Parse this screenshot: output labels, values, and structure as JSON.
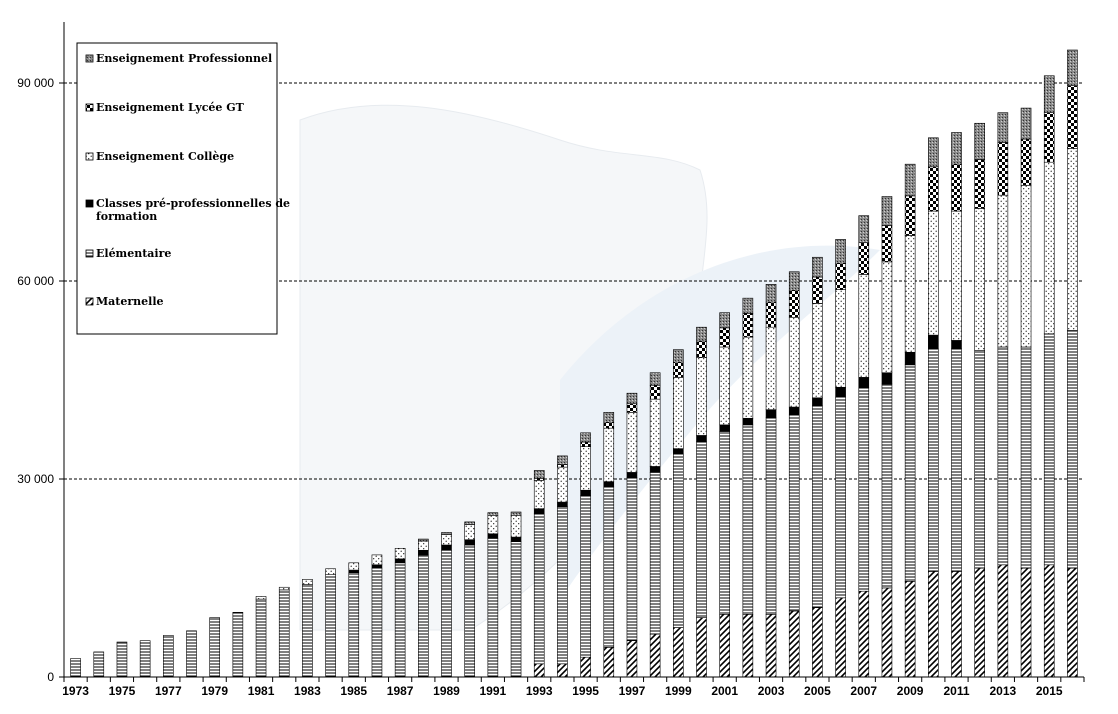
{
  "chart_data": {
    "type": "bar",
    "stacked": true,
    "title": "",
    "xlabel": "",
    "ylabel": "",
    "ylim": [
      0,
      95000
    ],
    "yticks": [
      0,
      30000,
      60000,
      90000
    ],
    "ytick_labels": [
      "0",
      "30 000",
      "60 000",
      "90 000"
    ],
    "grid": "horizontal dashed at 30 000, 60 000, 90 000",
    "legend_position": "top-left",
    "categories": [
      "1973",
      "1974",
      "1975",
      "1976",
      "1977",
      "1978",
      "1979",
      "1980",
      "1981",
      "1982",
      "1983",
      "1984",
      "1985",
      "1986",
      "1987",
      "1988",
      "1989",
      "1990",
      "1991",
      "1992",
      "1993",
      "1994",
      "1995",
      "1996",
      "1997",
      "1998",
      "1999",
      "2000",
      "2001",
      "2002",
      "2003",
      "2004",
      "2005",
      "2006",
      "2007",
      "2008",
      "2009",
      "2010",
      "2011",
      "2012",
      "2013",
      "2014",
      "2015",
      "2016"
    ],
    "xtick_labels": [
      "1973",
      "1975",
      "1977",
      "1979",
      "1981",
      "1983",
      "1985",
      "1987",
      "1989",
      "1991",
      "1993",
      "1995",
      "1997",
      "1999",
      "2001",
      "2003",
      "2005",
      "2007",
      "2009",
      "2011",
      "2013",
      "2015"
    ],
    "series": [
      {
        "name": "Maternelle",
        "pattern": "diagonal",
        "values": [
          0,
          0,
          0,
          0,
          0,
          0,
          0,
          0,
          0,
          0,
          0,
          0,
          0,
          0,
          0,
          0,
          0,
          0,
          0,
          0,
          2000,
          2000,
          3000,
          4500,
          5500,
          6500,
          7500,
          9000,
          9500,
          9500,
          9500,
          10000,
          10500,
          12000,
          13000,
          13500,
          14500,
          16000,
          16000,
          16500,
          17000,
          16500,
          17000,
          16500
        ]
      },
      {
        "name": "Elémentaire",
        "pattern": "horizontal",
        "values": [
          2800,
          3800,
          5300,
          5500,
          6300,
          7000,
          9000,
          9800,
          11800,
          13200,
          14000,
          15500,
          15800,
          16500,
          17300,
          18500,
          19200,
          20000,
          21000,
          20500,
          22800,
          23800,
          24500,
          24300,
          24700,
          24500,
          26300,
          26700,
          27700,
          28700,
          29800,
          29700,
          30600,
          30400,
          30900,
          30900,
          32800,
          33800,
          33800,
          33000,
          33000,
          33500,
          35000,
          36000
        ]
      },
      {
        "name": "Classes pré-professionnelles de formation",
        "pattern": "solid",
        "values": [
          0,
          0,
          0,
          0,
          0,
          0,
          0,
          0,
          0,
          0,
          0,
          0,
          400,
          500,
          600,
          700,
          800,
          800,
          700,
          700,
          700,
          700,
          800,
          800,
          800,
          900,
          800,
          900,
          1000,
          1000,
          1200,
          1200,
          1200,
          1500,
          1500,
          1700,
          1900,
          2000,
          1200,
          0,
          0,
          0,
          0,
          0
        ]
      },
      {
        "name": "Enseignement Collège",
        "pattern": "dots",
        "values": [
          0,
          0,
          0,
          0,
          0,
          0,
          0,
          0,
          400,
          400,
          800,
          900,
          1100,
          1500,
          1600,
          1400,
          1600,
          2300,
          2800,
          3300,
          4300,
          5300,
          6600,
          8100,
          9100,
          10200,
          10800,
          11800,
          11800,
          12300,
          12500,
          13600,
          14300,
          14800,
          15600,
          16800,
          17700,
          18800,
          19600,
          21500,
          23000,
          24500,
          26000,
          27600
        ]
      },
      {
        "name": "Enseignement Lycée GT",
        "pattern": "checker",
        "values": [
          0,
          0,
          0,
          0,
          0,
          0,
          0,
          0,
          0,
          0,
          0,
          0,
          0,
          0,
          0,
          0,
          0,
          0,
          0,
          0,
          300,
          400,
          700,
          900,
          1300,
          2100,
          2300,
          2500,
          2900,
          3600,
          3800,
          4100,
          4000,
          4000,
          4800,
          5500,
          6000,
          6700,
          7100,
          7400,
          8000,
          7000,
          7500,
          9500
        ]
      },
      {
        "name": "Enseignement Professionnel",
        "pattern": "stipple",
        "values": [
          0,
          0,
          0,
          0,
          0,
          0,
          0,
          0,
          0,
          0,
          0,
          0,
          0,
          0,
          0,
          300,
          300,
          400,
          400,
          500,
          1200,
          1300,
          1400,
          1500,
          1600,
          1900,
          1900,
          2100,
          2300,
          2300,
          2700,
          2800,
          3000,
          3600,
          4100,
          4400,
          4800,
          4400,
          4800,
          5500,
          4500,
          4700,
          5600,
          5400
        ]
      }
    ]
  },
  "legend_order": [
    "Enseignement Professionnel",
    "Enseignement Lycée GT",
    "Enseignement Collège",
    "Classes pré-professionnelles de formation",
    "Elémentaire",
    "Maternelle"
  ],
  "legend_lines": [
    [
      "Enseignement Professionnel"
    ],
    [
      "Enseignement Lycée GT"
    ],
    [
      "Enseignement Collège"
    ],
    [
      "Classes pré-professionnelles de",
      "formation"
    ],
    [
      "Elémentaire"
    ],
    [
      "Maternelle"
    ]
  ],
  "colors": {
    "ink": "#000000",
    "grid": "#000000",
    "background": "#ffffff",
    "map_watermark": "#dfe6ee"
  }
}
